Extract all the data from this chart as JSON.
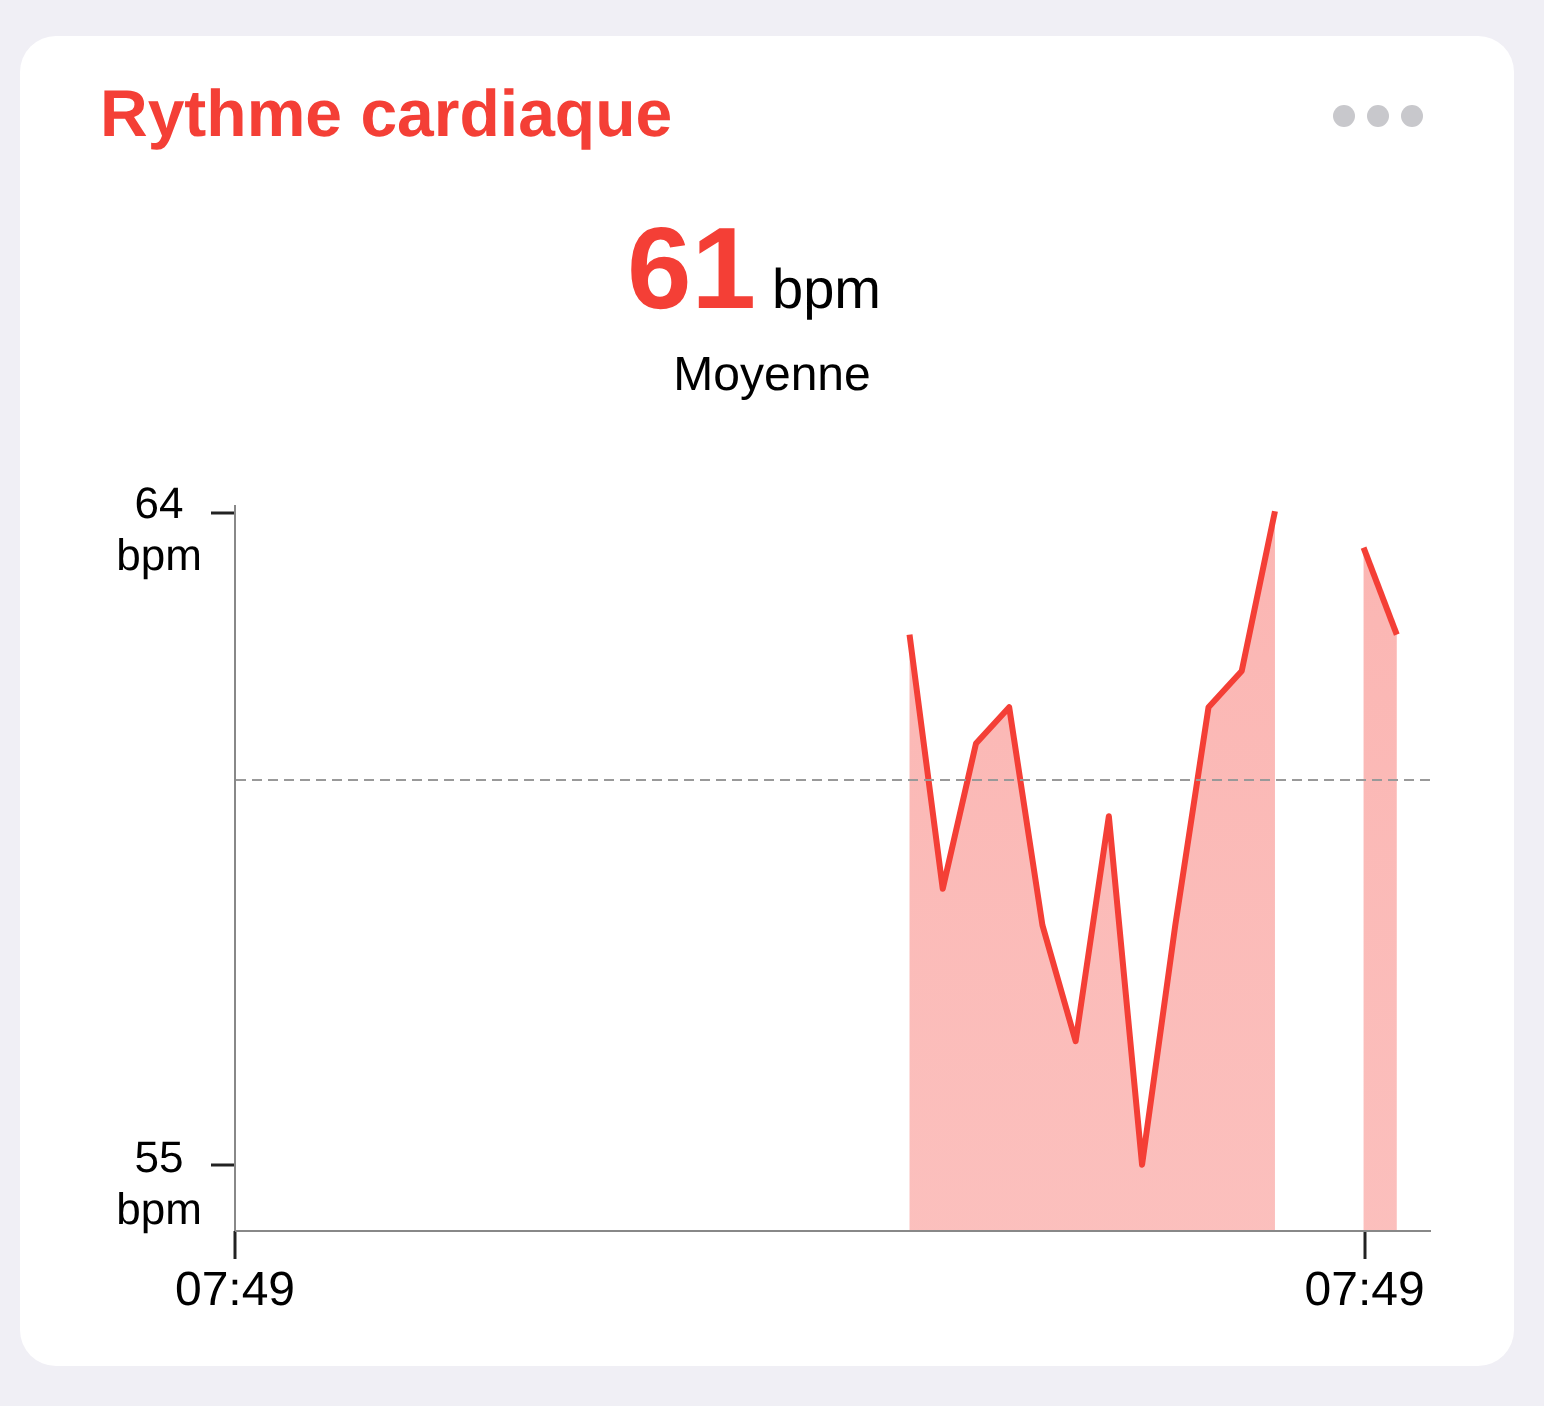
{
  "chart_data": {
    "type": "area",
    "title": "Rythme cardiaque",
    "annotations": [
      "61",
      "bpm",
      "Moyenne"
    ],
    "categories": [
      "07:49",
      null,
      null,
      null,
      null,
      null,
      null,
      null,
      null,
      null,
      null,
      null,
      null,
      null,
      null,
      null,
      null,
      null,
      null,
      null,
      null,
      null,
      null,
      null,
      null,
      null,
      null,
      null,
      null,
      null,
      null,
      null,
      null,
      null,
      null,
      null,
      null,
      null,
      null,
      null,
      null,
      null,
      null,
      null,
      null,
      null,
      null,
      null,
      null,
      null,
      null,
      null,
      null,
      null,
      null,
      null,
      null,
      null,
      null,
      null,
      null,
      null,
      null,
      null,
      null,
      null,
      null,
      null,
      null,
      null,
      null,
      null,
      null,
      null,
      null,
      null,
      null,
      null,
      null,
      null,
      null,
      null,
      null,
      null,
      null,
      null,
      null,
      null,
      null,
      null,
      null,
      null,
      null,
      null,
      null,
      null,
      null,
      null,
      null,
      null,
      null,
      null,
      "07:49",
      null,
      null,
      null,
      null,
      null,
      null
    ],
    "series": [
      {
        "color": "#f43f36",
        "values": [
          null,
          null,
          null,
          null,
          null,
          null,
          null,
          null,
          null,
          null,
          null,
          null,
          null,
          null,
          null,
          null,
          null,
          null,
          null,
          null,
          null,
          null,
          null,
          null,
          null,
          null,
          null,
          null,
          null,
          null,
          null,
          null,
          null,
          null,
          null,
          null,
          null,
          null,
          null,
          null,
          null,
          null,
          null,
          null,
          null,
          null,
          null,
          null,
          null,
          null,
          null,
          null,
          null,
          null,
          null,
          null,
          null,
          null,
          null,
          null,
          null,
          62.3,
          null,
          null,
          58.8,
          null,
          null,
          60.8,
          null,
          null,
          61.3,
          null,
          null,
          58.3,
          null,
          null,
          56.7,
          null,
          null,
          59.8,
          null,
          null,
          55.0,
          null,
          null,
          58.3,
          null,
          null,
          61.3,
          null,
          null,
          61.8,
          null,
          null,
          64.0,
          null,
          null,
          null,
          null,
          null,
          null,
          null,
          null,
          null,
          null,
          null,
          null,
          null,
          null
        ]
      },
      {
        "color": "#f43f36",
        "values": [
          null,
          null,
          null,
          null,
          null,
          null,
          null,
          null,
          null,
          null,
          null,
          null,
          null,
          null,
          null,
          null,
          null,
          null,
          null,
          null,
          null,
          null,
          null,
          null,
          null,
          null,
          null,
          null,
          null,
          null,
          null,
          null,
          null,
          null,
          null,
          null,
          null,
          null,
          null,
          null,
          null,
          null,
          null,
          null,
          null,
          null,
          null,
          null,
          null,
          null,
          null,
          null,
          null,
          null,
          null,
          null,
          null,
          null,
          null,
          null,
          null,
          null,
          null,
          null,
          null,
          null,
          null,
          null,
          null,
          null,
          null,
          null,
          null,
          null,
          null,
          null,
          null,
          null,
          null,
          null,
          null,
          null,
          null,
          null,
          null,
          null,
          null,
          null,
          null,
          null,
          null,
          null,
          null,
          null,
          null,
          null,
          null,
          null,
          null,
          null,
          null,
          null,
          63.5,
          null,
          null,
          62.3,
          null,
          null,
          null
        ]
      }
    ],
    "ylim": [
      54.1,
      64.1
    ],
    "yticks": [
      {
        "value": 55,
        "label": "55 bpm"
      },
      {
        "value": 64,
        "label": "64 bpm"
      }
    ],
    "ref_lines": [
      {
        "axis": "y",
        "value": 60.3,
        "color": "#999999",
        "line_style": "dashed"
      }
    ]
  }
}
